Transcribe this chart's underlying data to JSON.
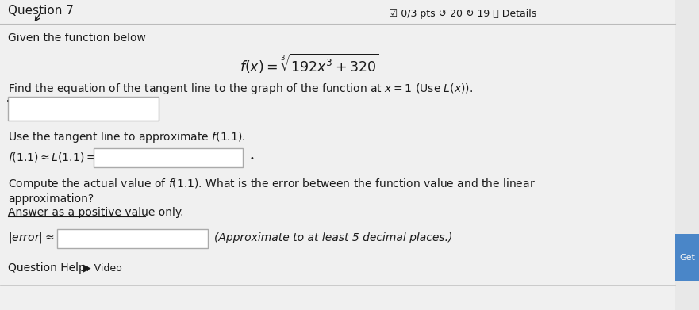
{
  "bg_color": "#e8e8e8",
  "white": "#f5f5f5",
  "content_white": "#f0f0f0",
  "black": "#000000",
  "dark_text": "#1a1a1a",
  "med_gray": "#555555",
  "light_gray": "#c8c8c8",
  "border_gray": "#999999",
  "title": "Question 7",
  "pts_text": "☑ 0/3 pts ↺ 20 ↻ 19 ⓘ Details",
  "given_text": "Given the function below",
  "find_text": "Find the equation of the tangent line to the graph of the function at",
  "use_text": "Use the tangent line to approximate",
  "compute_line1": "Compute the actual value of",
  "compute_line1b": ". What is the error between the function value and the linear",
  "approx_text": "approximation?",
  "answer_text": "Answer as a positive value only.",
  "approx_note": "(Approximate to at least 5 decimal places.)",
  "question_help": "Question Help:",
  "get_text": "Get",
  "box_fill": "#ffffff",
  "box_border": "#aaaaaa",
  "get_button_color": "#4a86c8",
  "separator_color": "#bbbbbb"
}
